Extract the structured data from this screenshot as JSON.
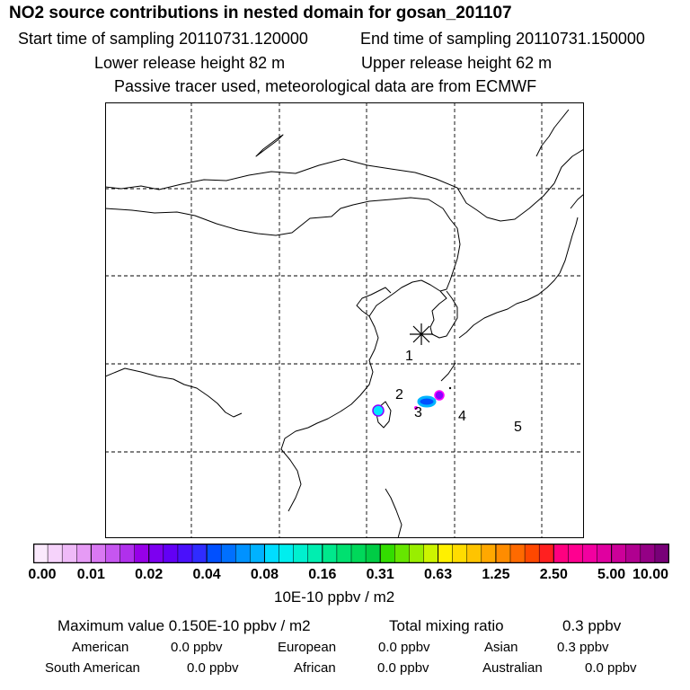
{
  "header": {
    "title": "NO2 source contributions in nested domain for gosan_201107",
    "start_time": "Start time of sampling 20110731.120000",
    "end_time": "End time of sampling 20110731.150000",
    "lower_height": "Lower release height   82 m",
    "upper_height": "Upper release height   62 m",
    "note": "Passive tracer used, meteorological data are from ECMWF"
  },
  "map": {
    "receptor_marker": "star-icon",
    "region_labels": [
      "1",
      "2",
      "3",
      "4",
      "5"
    ],
    "plume_colors": [
      "#ff00ff",
      "#8a00ff",
      "#0050ff",
      "#00b4ff",
      "#00e6ff"
    ]
  },
  "colorbar": {
    "ticks": [
      "0.00",
      "0.01",
      "0.02",
      "0.04",
      "0.08",
      "0.16",
      "0.31",
      "0.63",
      "1.25",
      "2.50",
      "5.00",
      "10.00"
    ],
    "colors": [
      [
        "#fbeafd",
        "#f6d3fb",
        "#efbaf8",
        "#e69bf5"
      ],
      [
        "#d978f2",
        "#c656f0",
        "#b030ec",
        "#9700e8"
      ],
      [
        "#7d00f0",
        "#6300f5",
        "#4a10fb",
        "#2f2cff"
      ],
      [
        "#0050ff",
        "#0070ff",
        "#0092ff",
        "#00b2ff"
      ],
      [
        "#00ddff",
        "#00eeee",
        "#00f0cf",
        "#00eeb0"
      ],
      [
        "#00e88c",
        "#00e070",
        "#00d85a",
        "#00cc45"
      ],
      [
        "#33dd00",
        "#66e600",
        "#99ee00",
        "#ccf400"
      ],
      [
        "#fff000",
        "#ffdc00",
        "#ffc400",
        "#ffa800"
      ],
      [
        "#ff8c00",
        "#ff6a00",
        "#ff4800",
        "#ff2020"
      ],
      [
        "#ff0080",
        "#ff0090",
        "#f200a0",
        "#e000a0"
      ],
      [
        "#cc0099",
        "#b00090",
        "#940085",
        "#780078"
      ]
    ],
    "unit": "10E-10 ppbv / m2"
  },
  "summary": {
    "max_label": "Maximum value  0.150E-10 ppbv / m2",
    "total_label": "Total mixing ratio",
    "total_value": "0.3 ppbv",
    "american_label": "American",
    "american_value": "0.0 ppbv",
    "european_label": "European",
    "european_value": "0.0 ppbv",
    "asian_label": "Asian",
    "asian_value": "0.3 ppbv",
    "south_american_label": "South American",
    "south_american_value": "0.0 ppbv",
    "african_label": "African",
    "african_value": "0.0 ppbv",
    "australian_label": "Australian",
    "australian_value": "0.0 ppbv"
  }
}
